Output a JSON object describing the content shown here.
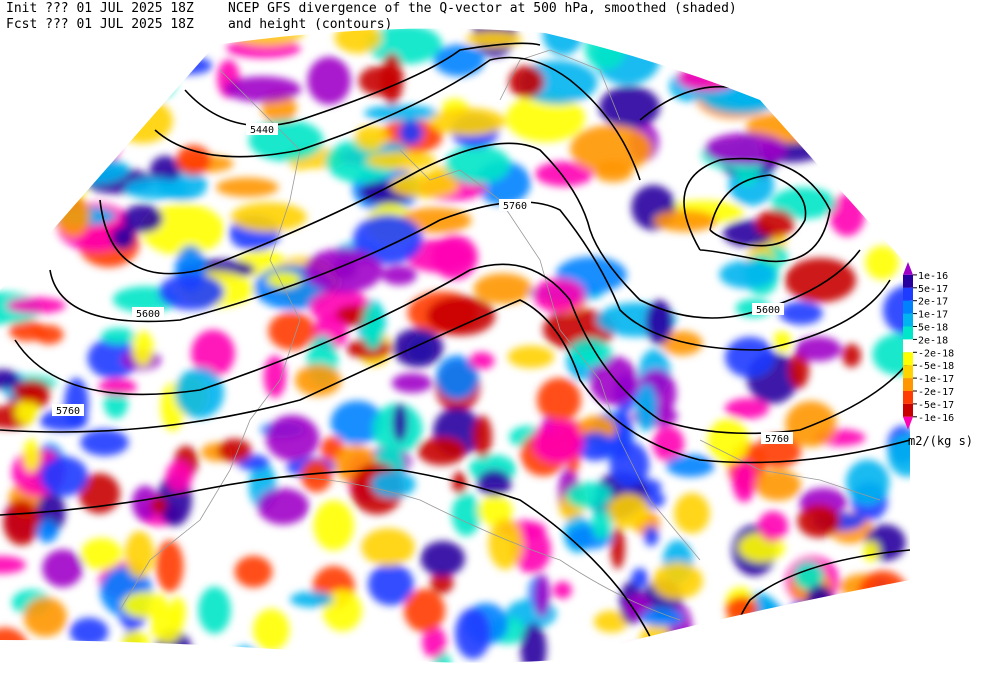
{
  "header": {
    "init": "Init  ??? 01 JUL 2025 18Z",
    "fcst": "Fcst ??? 01 JUL 2025 18Z",
    "title_line1": "NCEP GFS divergence of the Q-vector at 500 hPa, smoothed (shaded)",
    "title_line2": "and height (contours)"
  },
  "contour_labels": [
    "5440",
    "5600",
    "5760",
    "5760",
    "5600",
    "5760"
  ],
  "colorbar": {
    "labels": [
      "1e-16",
      "5e-17",
      "2e-17",
      "1e-17",
      "5e-18",
      "2e-18",
      "-2e-18",
      "-5e-18",
      "-1e-17",
      "-2e-17",
      "-5e-17",
      "-1e-16"
    ],
    "colors": [
      "#a000c8",
      "#2800a0",
      "#1e3cff",
      "#0082ff",
      "#00b4f0",
      "#00e6c8",
      "#ffffff",
      "#ffff00",
      "#ffd200",
      "#ff9600",
      "#ff3c00",
      "#c80000",
      "#ff00b4"
    ],
    "unit": "m2/(kg s)"
  }
}
